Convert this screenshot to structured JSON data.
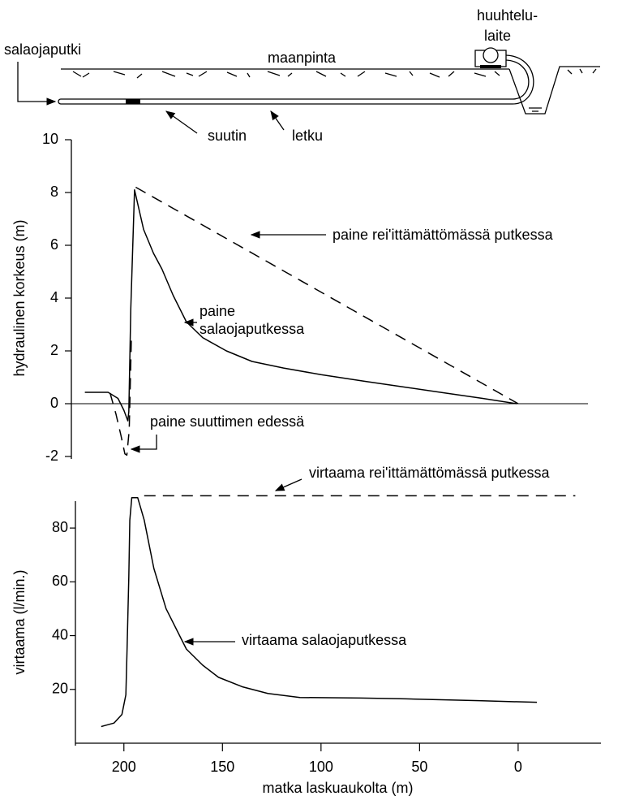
{
  "diagram": {
    "labels": {
      "pipe": "salaojaputki",
      "ground": "maanpinta",
      "device": [
        "huuhtelu-",
        "laite"
      ],
      "nozzle": "suutin",
      "hose": "letku"
    }
  },
  "chart_data": [
    {
      "type": "line",
      "ylabel": "hydraulinen korkeus (m)",
      "xlim": [
        225,
        -42
      ],
      "ylim": [
        -2,
        10
      ],
      "yticks": [
        10,
        8,
        6,
        4,
        2,
        0,
        -2
      ],
      "series": [
        {
          "name": "paine salaojaputkessa",
          "color": "#000000",
          "dash": "solid",
          "x": [
            219.8,
            208,
            203,
            200,
            198,
            197.5,
            196.5,
            194.6,
            190,
            185,
            180.7,
            175,
            168.3,
            160,
            148,
            135,
            119,
            100,
            78,
            55,
            36.6,
            18,
            0.8
          ],
          "values": [
            0.43,
            0.43,
            0.2,
            -0.25,
            -0.65,
            -0.3,
            3.6,
            8.1,
            6.6,
            5.7,
            5.1,
            4.1,
            3.1,
            2.5,
            2.0,
            1.6,
            1.35,
            1.1,
            0.85,
            0.6,
            0.4,
            0.2,
            0
          ]
        },
        {
          "name": "paine rei'ittämättömässä putkessa",
          "color": "#000000",
          "dash": "dashed",
          "x": [
            194,
            0
          ],
          "values": [
            8.2,
            0
          ]
        },
        {
          "name": "paine suuttimen edessä",
          "color": "#000000",
          "dash": "dashed",
          "x": [
            207,
            204,
            201.5,
            199.5,
            198.5,
            197.3,
            196.2
          ],
          "values": [
            0.4,
            -0.4,
            -1.2,
            -1.9,
            -1.95,
            -1.0,
            2.5
          ]
        }
      ]
    },
    {
      "type": "line",
      "ylabel": "virtaama (l/min.)",
      "xlabel": "matka laskuaukolta (m)",
      "xlim": [
        225,
        -42
      ],
      "ylim": [
        0,
        90
      ],
      "yticks": [
        80,
        60,
        40,
        20
      ],
      "xticks": [
        200,
        150,
        100,
        50,
        0
      ],
      "series": [
        {
          "name": "virtaama salaojaputkessa",
          "color": "#000000",
          "dash": "solid",
          "x": [
            211.5,
            205,
            201,
            199,
            198.4,
            197.5,
            197,
            196,
            193,
            189.7,
            184.8,
            178.6,
            168.3,
            160,
            152,
            140,
            127,
            110.7,
            80,
            57,
            20,
            -9.5
          ],
          "values": [
            6.2,
            7.5,
            10.7,
            18,
            34.7,
            62,
            82.9,
            91.3,
            91.3,
            83,
            65,
            50,
            35,
            29,
            24.5,
            21,
            18.5,
            17,
            16.8,
            16.5,
            15.8,
            15.2
          ]
        },
        {
          "name": "virtaama rei'ittämättömässä putkessa",
          "color": "#000000",
          "dash": "dashed",
          "x": [
            189.7,
            -29
          ],
          "values": [
            92,
            92
          ]
        }
      ]
    }
  ]
}
